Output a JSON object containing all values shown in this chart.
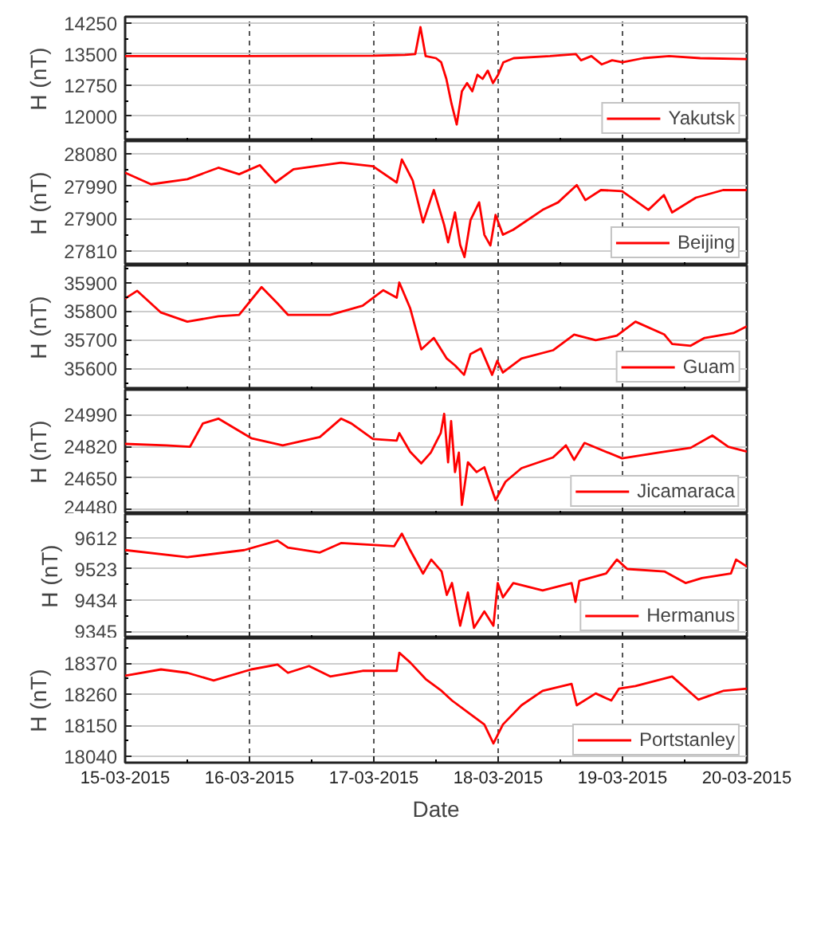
{
  "chart_data": [
    {
      "type": "line",
      "ylabel": "H (nT)",
      "xlim": [
        "2015-03-15",
        "2015-03-20"
      ],
      "xticks": [
        {
          "value": "2015-03-15",
          "label": null
        },
        {
          "value": "2015-03-16",
          "label": null
        },
        {
          "value": "2015-03-17",
          "label": null
        },
        {
          "value": "2015-03-18",
          "label": null
        },
        {
          "value": "2015-03-19",
          "label": null
        },
        {
          "value": "2015-03-20",
          "label": null
        }
      ],
      "ylim": [
        11400,
        14400
      ],
      "yticks": [
        12000,
        12750,
        13500,
        14250
      ],
      "grid": true,
      "legend": "bottom right",
      "tick_labels": "y",
      "series": [
        {
          "name": "Yakutsk",
          "color": "#ff0000",
          "x": [
            "2015-03-15T00:00",
            "2015-03-16T00:00",
            "2015-03-17T00:00",
            "2015-03-17T06:00",
            "2015-03-17T08:00",
            "2015-03-17T09:00",
            "2015-03-17T10:00",
            "2015-03-17T12:00",
            "2015-03-17T13:00",
            "2015-03-17T14:00",
            "2015-03-17T15:00",
            "2015-03-17T16:00",
            "2015-03-17T17:00",
            "2015-03-17T18:00",
            "2015-03-17T19:00",
            "2015-03-17T20:00",
            "2015-03-17T21:00",
            "2015-03-17T22:00",
            "2015-03-17T23:00",
            "2015-03-18T00:00",
            "2015-03-18T01:00",
            "2015-03-18T03:00",
            "2015-03-18T10:00",
            "2015-03-18T15:00",
            "2015-03-18T16:00",
            "2015-03-18T18:00",
            "2015-03-18T20:00",
            "2015-03-18T22:00",
            "2015-03-19T00:00",
            "2015-03-19T04:00",
            "2015-03-19T09:00",
            "2015-03-19T15:00",
            "2015-03-20T00:00"
          ],
          "values": [
            13450,
            13450,
            13460,
            13480,
            13500,
            14150,
            13450,
            13400,
            13300,
            12900,
            12300,
            11800,
            12600,
            12800,
            12600,
            13000,
            12900,
            13100,
            12800,
            13000,
            13300,
            13400,
            13450,
            13500,
            13350,
            13450,
            13250,
            13350,
            13300,
            13400,
            13450,
            13400,
            13380
          ]
        }
      ]
    },
    {
      "type": "line",
      "ylabel": "H (nT)",
      "xlim": [
        "2015-03-15",
        "2015-03-20"
      ],
      "xticks": [
        {
          "value": "2015-03-15",
          "label": null
        },
        {
          "value": "2015-03-16",
          "label": null
        },
        {
          "value": "2015-03-17",
          "label": null
        },
        {
          "value": "2015-03-18",
          "label": null
        },
        {
          "value": "2015-03-19",
          "label": null
        },
        {
          "value": "2015-03-20",
          "label": null
        }
      ],
      "ylim": [
        27770,
        28115
      ],
      "yticks": [
        27810,
        27900,
        27990,
        28080
      ],
      "grid": true,
      "legend": "bottom right",
      "tick_labels": "y",
      "series": [
        {
          "name": "Beijing",
          "color": "#ff0000",
          "x": [
            "2015-03-15T00:00",
            "2015-03-15T05:00",
            "2015-03-15T12:00",
            "2015-03-15T18:00",
            "2015-03-15T22:00",
            "2015-03-16T02:00",
            "2015-03-16T05:00",
            "2015-03-16T08:30",
            "2015-03-16T17:40",
            "2015-03-16T23:50",
            "2015-03-17T04:25",
            "2015-03-17T05:25",
            "2015-03-17T07:30",
            "2015-03-17T09:30",
            "2015-03-17T11:35",
            "2015-03-17T13:35",
            "2015-03-17T14:20",
            "2015-03-17T15:40",
            "2015-03-17T16:40",
            "2015-03-17T17:30",
            "2015-03-17T18:40",
            "2015-03-17T20:20",
            "2015-03-17T21:20",
            "2015-03-17T22:30",
            "2015-03-17T23:30",
            "2015-03-18T00:55",
            "2015-03-18T02:55",
            "2015-03-18T08:35",
            "2015-03-18T11:35",
            "2015-03-18T15:10",
            "2015-03-18T16:50",
            "2015-03-18T19:50",
            "2015-03-18T23:55",
            "2015-03-19T05:00",
            "2015-03-19T08:00",
            "2015-03-19T09:35",
            "2015-03-19T14:10",
            "2015-03-19T19:25",
            "2015-03-20T00:00"
          ],
          "values": [
            28027,
            27995,
            28009,
            28041,
            28023,
            28048,
            28000,
            28037,
            28055,
            28045,
            28000,
            28064,
            28006,
            27889,
            27979,
            27882,
            27834,
            27917,
            27827,
            27793,
            27896,
            27945,
            27855,
            27825,
            27910,
            27855,
            27869,
            27924,
            27945,
            27993,
            27951,
            27979,
            27976,
            27924,
            27965,
            27917,
            27958,
            27979,
            27979
          ]
        }
      ]
    },
    {
      "type": "line",
      "ylabel": "H (nT)",
      "xlim": [
        "2015-03-15",
        "2015-03-20"
      ],
      "xticks": [
        {
          "value": "2015-03-15",
          "label": null
        },
        {
          "value": "2015-03-16",
          "label": null
        },
        {
          "value": "2015-03-17",
          "label": null
        },
        {
          "value": "2015-03-18",
          "label": null
        },
        {
          "value": "2015-03-19",
          "label": null
        },
        {
          "value": "2015-03-20",
          "label": null
        }
      ],
      "ylim": [
        35525,
        35960
      ],
      "yticks": [
        35600,
        35700,
        35800,
        35900
      ],
      "grid": true,
      "legend": "bottom right",
      "tick_labels": "y",
      "series": [
        {
          "name": "Guam",
          "color": "#ff0000",
          "x": [
            "2015-03-15T00:00",
            "2015-03-15T02:20",
            "2015-03-15T06:55",
            "2015-03-15T12:00",
            "2015-03-15T18:00",
            "2015-03-15T22:00",
            "2015-03-16T02:20",
            "2015-03-16T05:25",
            "2015-03-16T07:25",
            "2015-03-16T15:35",
            "2015-03-16T21:50",
            "2015-03-17T01:50",
            "2015-03-17T04:25",
            "2015-03-17T04:55",
            "2015-03-17T07:00",
            "2015-03-17T09:10",
            "2015-03-17T11:35",
            "2015-03-17T14:05",
            "2015-03-17T15:40",
            "2015-03-17T17:25",
            "2015-03-17T18:40",
            "2015-03-17T20:40",
            "2015-03-17T22:50",
            "2015-03-17T23:50",
            "2015-03-18T00:55",
            "2015-03-18T04:30",
            "2015-03-18T10:35",
            "2015-03-18T14:40",
            "2015-03-18T18:50",
            "2015-03-18T22:55",
            "2015-03-19T02:30",
            "2015-03-19T08:05",
            "2015-03-19T09:35",
            "2015-03-19T13:10",
            "2015-03-19T15:50",
            "2015-03-19T21:25",
            "2015-03-20T00:00"
          ],
          "values": [
            35844,
            35871,
            35795,
            35763,
            35782,
            35787,
            35884,
            35827,
            35787,
            35787,
            35819,
            35873,
            35847,
            35900,
            35811,
            35666,
            35706,
            35634,
            35610,
            35577,
            35650,
            35669,
            35577,
            35626,
            35585,
            35634,
            35663,
            35718,
            35698,
            35714,
            35763,
            35718,
            35685,
            35679,
            35706,
            35723,
            35747
          ]
        }
      ]
    },
    {
      "type": "line",
      "ylabel": "H (nT)",
      "xlim": [
        "2015-03-15",
        "2015-03-20"
      ],
      "xticks": [
        {
          "value": "2015-03-15",
          "label": null
        },
        {
          "value": "2015-03-16",
          "label": null
        },
        {
          "value": "2015-03-17",
          "label": null
        },
        {
          "value": "2015-03-18",
          "label": null
        },
        {
          "value": "2015-03-19",
          "label": null
        },
        {
          "value": "2015-03-20",
          "label": null
        }
      ],
      "ylim": [
        24455,
        25125
      ],
      "yticks": [
        24480,
        24650,
        24820,
        24990
      ],
      "grid": true,
      "legend": "bottom right",
      "tick_labels": "y",
      "series": [
        {
          "name": "Jicamaraca",
          "color": "#ff0000",
          "x": [
            "2015-03-15T00:00",
            "2015-03-15T07:55",
            "2015-03-15T12:30",
            "2015-03-15T15:00",
            "2015-03-15T18:00",
            "2015-03-16T00:20",
            "2015-03-16T06:25",
            "2015-03-16T13:35",
            "2015-03-16T17:40",
            "2015-03-16T19:40",
            "2015-03-16T23:50",
            "2015-03-17T04:25",
            "2015-03-17T04:55",
            "2015-03-17T07:00",
            "2015-03-17T09:10",
            "2015-03-17T11:00",
            "2015-03-17T12:55",
            "2015-03-17T13:35",
            "2015-03-17T14:20",
            "2015-03-17T14:55",
            "2015-03-17T15:40",
            "2015-03-17T16:25",
            "2015-03-17T17:00",
            "2015-03-17T18:10",
            "2015-03-17T19:50",
            "2015-03-17T21:20",
            "2015-03-17T23:30",
            "2015-03-18T01:25",
            "2015-03-18T04:30",
            "2015-03-18T10:35",
            "2015-03-18T13:05",
            "2015-03-18T14:40",
            "2015-03-18T16:40",
            "2015-03-18T23:55",
            "2015-03-19T07:00",
            "2015-03-19T13:10",
            "2015-03-19T17:20",
            "2015-03-19T20:25",
            "2015-03-20T00:00"
          ],
          "values": [
            24833,
            24825,
            24817,
            24943,
            24969,
            24864,
            24825,
            24870,
            24969,
            24943,
            24859,
            24851,
            24891,
            24791,
            24728,
            24786,
            24891,
            24995,
            24734,
            24956,
            24681,
            24786,
            24504,
            24734,
            24681,
            24707,
            24530,
            24629,
            24702,
            24760,
            24825,
            24747,
            24838,
            24755,
            24786,
            24812,
            24878,
            24817,
            24791
          ]
        }
      ]
    },
    {
      "type": "line",
      "ylabel": "H (nT)",
      "xlim": [
        "2015-03-15",
        "2015-03-20"
      ],
      "xticks": [
        {
          "value": "2015-03-15",
          "label": null
        },
        {
          "value": "2015-03-16",
          "label": null
        },
        {
          "value": "2015-03-17",
          "label": null
        },
        {
          "value": "2015-03-18",
          "label": null
        },
        {
          "value": "2015-03-19",
          "label": null
        },
        {
          "value": "2015-03-20",
          "label": null
        }
      ],
      "ylim": [
        9325,
        9680
      ],
      "yticks": [
        9345,
        9434,
        9523,
        9612
      ],
      "grid": true,
      "legend": "bottom right",
      "tick_labels": "y",
      "series": [
        {
          "name": "Hermanus",
          "color": "#ff0000",
          "x": [
            "2015-03-15T00:00",
            "2015-03-15T12:00",
            "2015-03-15T23:00",
            "2015-03-16T05:25",
            "2015-03-16T07:25",
            "2015-03-16T13:35",
            "2015-03-16T17:40",
            "2015-03-17T03:55",
            "2015-03-17T05:25",
            "2015-03-17T07:00",
            "2015-03-17T09:30",
            "2015-03-17T11:05",
            "2015-03-17T13:05",
            "2015-03-17T14:05",
            "2015-03-17T15:05",
            "2015-03-17T16:40",
            "2015-03-17T18:10",
            "2015-03-17T19:20",
            "2015-03-17T21:20",
            "2015-03-17T23:05",
            "2015-03-17T23:55",
            "2015-03-18T00:55",
            "2015-03-18T02:55",
            "2015-03-18T08:35",
            "2015-03-18T14:10",
            "2015-03-18T14:55",
            "2015-03-18T15:40",
            "2015-03-18T20:50",
            "2015-03-18T22:55",
            "2015-03-19T00:55",
            "2015-03-19T08:05",
            "2015-03-19T12:10",
            "2015-03-19T15:20",
            "2015-03-19T20:55",
            "2015-03-19T21:55",
            "2015-03-20T00:00"
          ],
          "values": [
            9577,
            9557,
            9577,
            9604,
            9584,
            9570,
            9597,
            9588,
            9624,
            9577,
            9510,
            9550,
            9516,
            9449,
            9483,
            9361,
            9456,
            9355,
            9402,
            9361,
            9483,
            9442,
            9483,
            9462,
            9483,
            9429,
            9489,
            9510,
            9550,
            9523,
            9516,
            9483,
            9497,
            9510,
            9550,
            9530
          ]
        }
      ]
    },
    {
      "type": "line",
      "ylabel": "H (nT)",
      "xlabel": "Date",
      "xlim": [
        "2015-03-15",
        "2015-03-20"
      ],
      "xticks": [
        {
          "value": "2015-03-15",
          "label": "15-03-2015"
        },
        {
          "value": "2015-03-16",
          "label": "16-03-2015"
        },
        {
          "value": "2015-03-17",
          "label": "17-03-2015"
        },
        {
          "value": "2015-03-18",
          "label": "18-03-2015"
        },
        {
          "value": "2015-03-19",
          "label": "19-03-2015"
        },
        {
          "value": "2015-03-20",
          "label": "20-03-2015"
        }
      ],
      "ylim": [
        18018,
        18458
      ],
      "yticks": [
        18040,
        18150,
        18260,
        18370
      ],
      "grid": true,
      "legend": "bottom right",
      "series": [
        {
          "name": "Portstanley",
          "color": "#ff0000",
          "x": [
            "2015-03-15T00:00",
            "2015-03-15T06:55",
            "2015-03-15T12:00",
            "2015-03-15T17:05",
            "2015-03-16T00:20",
            "2015-03-16T05:25",
            "2015-03-16T07:25",
            "2015-03-16T11:30",
            "2015-03-16T15:35",
            "2015-03-16T21:50",
            "2015-03-17T04:25",
            "2015-03-17T04:55",
            "2015-03-17T07:00",
            "2015-03-17T10:00",
            "2015-03-17T13:05",
            "2015-03-17T15:05",
            "2015-03-17T18:10",
            "2015-03-17T21:20",
            "2015-03-17T23:05",
            "2015-03-18T00:55",
            "2015-03-18T04:30",
            "2015-03-18T08:35",
            "2015-03-18T14:10",
            "2015-03-18T15:10",
            "2015-03-18T18:50",
            "2015-03-18T21:50",
            "2015-03-18T23:20",
            "2015-03-19T02:30",
            "2015-03-19T09:35",
            "2015-03-19T14:40",
            "2015-03-19T19:25",
            "2015-03-20T00:00"
          ],
          "values": [
            18326,
            18348,
            18336,
            18309,
            18348,
            18365,
            18336,
            18360,
            18323,
            18343,
            18343,
            18407,
            18373,
            18314,
            18272,
            18238,
            18196,
            18153,
            18086,
            18153,
            18221,
            18272,
            18297,
            18221,
            18263,
            18238,
            18280,
            18289,
            18323,
            18241,
            18272,
            18280
          ]
        }
      ]
    }
  ]
}
